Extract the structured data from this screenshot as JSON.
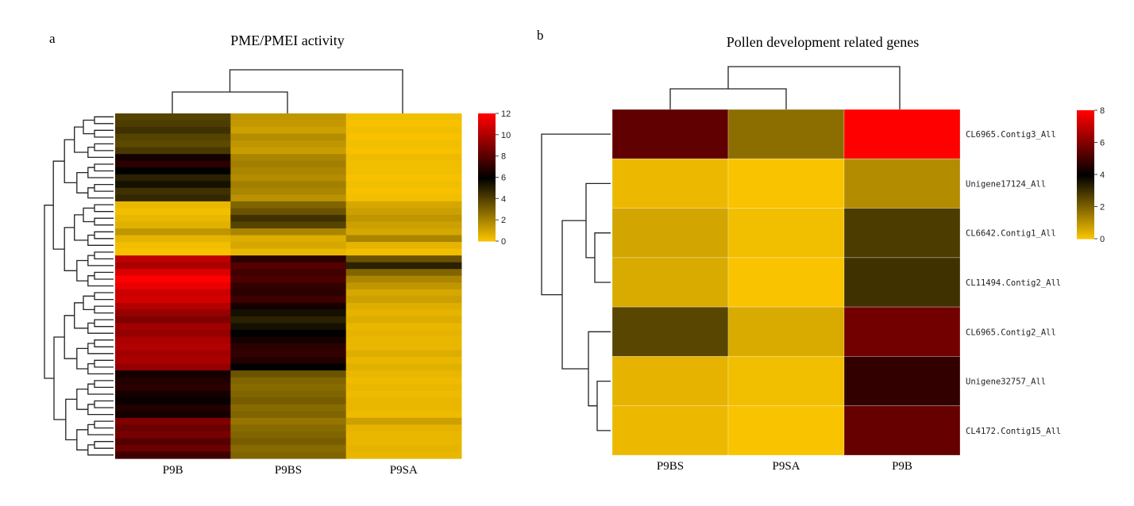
{
  "chart_data": [
    {
      "type": "heatmap",
      "panel_label": "a",
      "title": "PME/PMEI activity",
      "columns": [
        "P9B",
        "P9BS",
        "P9SA"
      ],
      "colorbar": {
        "min": 0,
        "max": 12,
        "ticks": [
          "12",
          "10",
          "8",
          "6",
          "4",
          "2",
          "0"
        ]
      },
      "rows": [
        [
          4.0,
          1.5,
          0.3
        ],
        [
          4.2,
          1.4,
          0.2
        ],
        [
          4.5,
          1.2,
          0.3
        ],
        [
          4.0,
          1.8,
          0.2
        ],
        [
          3.8,
          1.5,
          0.3
        ],
        [
          4.3,
          1.3,
          0.2
        ],
        [
          6.5,
          2.0,
          0.4
        ],
        [
          7.0,
          2.2,
          0.3
        ],
        [
          6.0,
          2.0,
          0.3
        ],
        [
          5.0,
          1.8,
          0.2
        ],
        [
          5.5,
          2.2,
          0.3
        ],
        [
          4.5,
          2.0,
          0.2
        ],
        [
          4.8,
          1.6,
          0.3
        ],
        [
          0.5,
          3.0,
          1.0
        ],
        [
          0.3,
          3.5,
          1.2
        ],
        [
          0.5,
          4.5,
          1.5
        ],
        [
          0.7,
          4.0,
          1.2
        ],
        [
          1.5,
          2.0,
          1.0
        ],
        [
          0.6,
          0.8,
          2.0
        ],
        [
          0.3,
          1.0,
          0.6
        ],
        [
          0.2,
          0.5,
          0.3
        ],
        [
          10.5,
          7.0,
          3.5
        ],
        [
          10.0,
          8.0,
          5.0
        ],
        [
          11.2,
          7.5,
          3.0
        ],
        [
          12.0,
          7.8,
          2.0
        ],
        [
          11.5,
          7.2,
          1.5
        ],
        [
          10.8,
          7.0,
          1.0
        ],
        [
          11.0,
          7.5,
          1.2
        ],
        [
          10.2,
          6.5,
          0.8
        ],
        [
          9.5,
          5.5,
          0.6
        ],
        [
          9.0,
          5.0,
          0.8
        ],
        [
          9.8,
          5.5,
          0.5
        ],
        [
          9.5,
          6.0,
          0.6
        ],
        [
          10.0,
          6.5,
          0.5
        ],
        [
          10.2,
          7.0,
          0.5
        ],
        [
          9.8,
          7.2,
          0.8
        ],
        [
          10.0,
          6.8,
          0.5
        ],
        [
          9.5,
          6.0,
          0.7
        ],
        [
          6.5,
          3.5,
          0.5
        ],
        [
          6.8,
          3.0,
          0.4
        ],
        [
          7.0,
          2.8,
          0.5
        ],
        [
          6.5,
          3.0,
          0.4
        ],
        [
          6.2,
          3.2,
          0.5
        ],
        [
          6.8,
          2.8,
          0.5
        ],
        [
          6.5,
          3.0,
          0.4
        ],
        [
          9.0,
          2.5,
          1.2
        ],
        [
          8.5,
          2.8,
          0.6
        ],
        [
          8.8,
          3.0,
          0.5
        ],
        [
          8.0,
          3.2,
          0.5
        ],
        [
          8.5,
          2.8,
          0.6
        ],
        [
          7.5,
          3.0,
          0.5
        ]
      ]
    },
    {
      "type": "heatmap",
      "panel_label": "b",
      "title": "Pollen  development related genes",
      "columns": [
        "P9BS",
        "P9SA",
        "P9B"
      ],
      "row_labels": [
        "CL6965.Contig3_All",
        "Unigene17124_All",
        "CL6642.Contig1_All",
        "CL11494.Contig2_All",
        "CL6965.Contig2_All",
        "Unigene32757_All",
        "CL4172.Contig15_All"
      ],
      "colorbar": {
        "min": 0,
        "max": 8,
        "ticks": [
          "8",
          "6",
          "4",
          "2",
          "0"
        ]
      },
      "rows": [
        [
          5.5,
          1.8,
          8.0
        ],
        [
          0.3,
          0.1,
          1.2
        ],
        [
          0.7,
          0.2,
          2.8
        ],
        [
          0.6,
          0.1,
          3.0
        ],
        [
          2.6,
          0.6,
          5.8
        ],
        [
          0.4,
          0.2,
          4.8
        ],
        [
          0.3,
          0.1,
          5.6
        ]
      ]
    }
  ]
}
